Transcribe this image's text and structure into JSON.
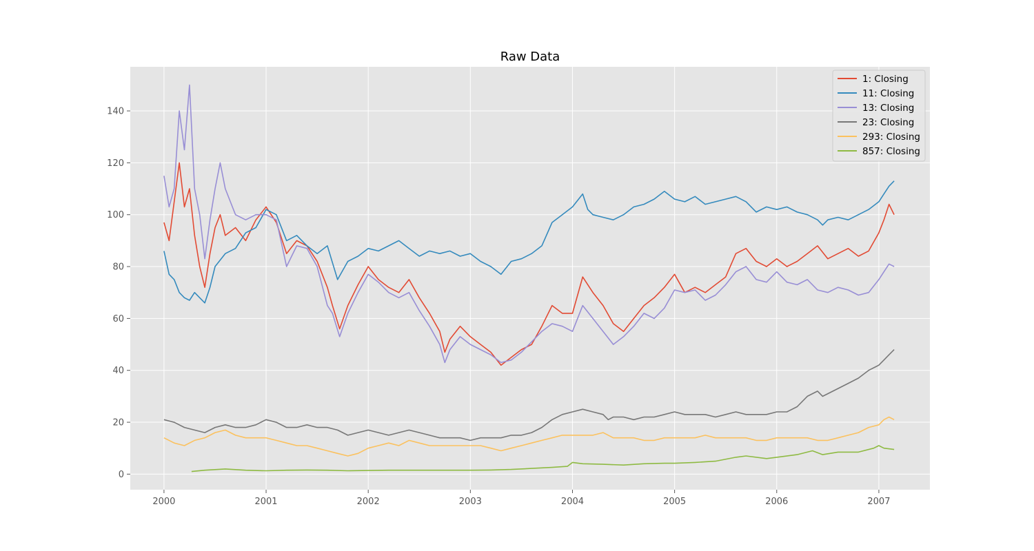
{
  "chart_data": {
    "type": "line",
    "title": "Raw Data",
    "xlabel": "",
    "ylabel": "",
    "xlim": [
      1999.67,
      2007.5
    ],
    "ylim": [
      -6,
      157
    ],
    "x_ticks": [
      2000,
      2001,
      2002,
      2003,
      2004,
      2005,
      2006,
      2007
    ],
    "x_tick_labels": [
      "2000",
      "2001",
      "2002",
      "2003",
      "2004",
      "2005",
      "2006",
      "2007"
    ],
    "y_ticks": [
      0,
      20,
      40,
      60,
      80,
      100,
      120,
      140
    ],
    "y_tick_labels": [
      "0",
      "20",
      "40",
      "60",
      "80",
      "100",
      "120",
      "140"
    ],
    "grid": true,
    "legend_position": "top-right",
    "series": [
      {
        "name": "1: Closing",
        "color": "#E24A33",
        "x": [
          2000.0,
          2000.05,
          2000.1,
          2000.15,
          2000.2,
          2000.25,
          2000.3,
          2000.35,
          2000.4,
          2000.45,
          2000.5,
          2000.55,
          2000.6,
          2000.7,
          2000.8,
          2000.9,
          2001.0,
          2001.1,
          2001.2,
          2001.3,
          2001.4,
          2001.5,
          2001.6,
          2001.65,
          2001.72,
          2001.8,
          2001.9,
          2002.0,
          2002.1,
          2002.2,
          2002.3,
          2002.4,
          2002.5,
          2002.6,
          2002.7,
          2002.75,
          2002.8,
          2002.9,
          2003.0,
          2003.1,
          2003.2,
          2003.3,
          2003.4,
          2003.5,
          2003.6,
          2003.7,
          2003.8,
          2003.9,
          2004.0,
          2004.1,
          2004.2,
          2004.3,
          2004.4,
          2004.5,
          2004.6,
          2004.7,
          2004.8,
          2004.9,
          2005.0,
          2005.1,
          2005.2,
          2005.3,
          2005.4,
          2005.5,
          2005.6,
          2005.7,
          2005.8,
          2005.9,
          2006.0,
          2006.1,
          2006.2,
          2006.3,
          2006.4,
          2006.5,
          2006.6,
          2006.7,
          2006.8,
          2006.9,
          2007.0,
          2007.05,
          2007.1,
          2007.15
        ],
        "values": [
          97,
          90,
          105,
          120,
          103,
          110,
          92,
          80,
          72,
          85,
          95,
          100,
          92,
          95,
          90,
          98,
          103,
          97,
          85,
          90,
          88,
          82,
          72,
          65,
          56,
          65,
          73,
          80,
          75,
          72,
          70,
          75,
          68,
          62,
          55,
          47,
          52,
          57,
          53,
          50,
          47,
          42,
          45,
          48,
          50,
          57,
          65,
          62,
          62,
          76,
          70,
          65,
          58,
          55,
          60,
          65,
          68,
          72,
          77,
          70,
          72,
          70,
          73,
          76,
          85,
          87,
          82,
          80,
          83,
          80,
          82,
          85,
          88,
          83,
          85,
          87,
          84,
          86,
          93,
          98,
          104,
          100
        ]
      },
      {
        "name": "11: Closing",
        "color": "#348ABD",
        "x": [
          2000.0,
          2000.05,
          2000.1,
          2000.15,
          2000.2,
          2000.25,
          2000.3,
          2000.35,
          2000.4,
          2000.45,
          2000.5,
          2000.6,
          2000.7,
          2000.8,
          2000.9,
          2001.0,
          2001.1,
          2001.2,
          2001.3,
          2001.4,
          2001.5,
          2001.6,
          2001.7,
          2001.8,
          2001.9,
          2002.0,
          2002.1,
          2002.2,
          2002.3,
          2002.4,
          2002.5,
          2002.6,
          2002.7,
          2002.8,
          2002.9,
          2003.0,
          2003.1,
          2003.2,
          2003.3,
          2003.4,
          2003.5,
          2003.6,
          2003.7,
          2003.8,
          2003.9,
          2004.0,
          2004.1,
          2004.15,
          2004.2,
          2004.3,
          2004.4,
          2004.5,
          2004.6,
          2004.7,
          2004.8,
          2004.9,
          2005.0,
          2005.1,
          2005.2,
          2005.3,
          2005.4,
          2005.5,
          2005.6,
          2005.7,
          2005.8,
          2005.9,
          2006.0,
          2006.1,
          2006.2,
          2006.3,
          2006.4,
          2006.45,
          2006.5,
          2006.6,
          2006.7,
          2006.8,
          2006.9,
          2007.0,
          2007.05,
          2007.1,
          2007.15
        ],
        "values": [
          86,
          77,
          75,
          70,
          68,
          67,
          70,
          68,
          66,
          72,
          80,
          85,
          87,
          93,
          95,
          102,
          100,
          90,
          92,
          88,
          85,
          88,
          75,
          82,
          84,
          87,
          86,
          88,
          90,
          87,
          84,
          86,
          85,
          86,
          84,
          85,
          82,
          80,
          77,
          82,
          83,
          85,
          88,
          97,
          100,
          103,
          108,
          102,
          100,
          99,
          98,
          100,
          103,
          104,
          106,
          109,
          106,
          105,
          107,
          104,
          105,
          106,
          107,
          105,
          101,
          103,
          102,
          103,
          101,
          100,
          98,
          96,
          98,
          99,
          98,
          100,
          102,
          105,
          108,
          111,
          113
        ]
      },
      {
        "name": "13: Closing",
        "color": "#988ED5",
        "x": [
          2000.0,
          2000.05,
          2000.1,
          2000.15,
          2000.2,
          2000.25,
          2000.3,
          2000.35,
          2000.4,
          2000.45,
          2000.5,
          2000.55,
          2000.6,
          2000.7,
          2000.8,
          2000.9,
          2001.0,
          2001.1,
          2001.2,
          2001.3,
          2001.4,
          2001.5,
          2001.6,
          2001.65,
          2001.72,
          2001.8,
          2001.9,
          2002.0,
          2002.1,
          2002.2,
          2002.3,
          2002.4,
          2002.5,
          2002.6,
          2002.7,
          2002.75,
          2002.8,
          2002.9,
          2003.0,
          2003.1,
          2003.2,
          2003.3,
          2003.4,
          2003.5,
          2003.6,
          2003.7,
          2003.8,
          2003.9,
          2004.0,
          2004.1,
          2004.2,
          2004.3,
          2004.4,
          2004.5,
          2004.6,
          2004.7,
          2004.8,
          2004.9,
          2005.0,
          2005.1,
          2005.2,
          2005.3,
          2005.4,
          2005.5,
          2005.6,
          2005.7,
          2005.8,
          2005.9,
          2006.0,
          2006.1,
          2006.2,
          2006.3,
          2006.4,
          2006.5,
          2006.6,
          2006.7,
          2006.8,
          2006.9,
          2007.0,
          2007.05,
          2007.1,
          2007.15
        ],
        "values": [
          115,
          103,
          110,
          140,
          125,
          150,
          110,
          100,
          83,
          98,
          110,
          120,
          110,
          100,
          98,
          100,
          100,
          98,
          80,
          88,
          87,
          80,
          65,
          62,
          53,
          62,
          70,
          77,
          74,
          70,
          68,
          70,
          63,
          57,
          50,
          43,
          48,
          53,
          50,
          48,
          46,
          43,
          44,
          47,
          51,
          55,
          58,
          57,
          55,
          65,
          60,
          55,
          50,
          53,
          57,
          62,
          60,
          64,
          71,
          70,
          71,
          67,
          69,
          73,
          78,
          80,
          75,
          74,
          78,
          74,
          73,
          75,
          71,
          70,
          72,
          71,
          69,
          70,
          75,
          78,
          81,
          80
        ]
      },
      {
        "name": "23: Closing",
        "color": "#777777",
        "x": [
          2000.0,
          2000.1,
          2000.2,
          2000.3,
          2000.4,
          2000.5,
          2000.6,
          2000.7,
          2000.8,
          2000.9,
          2001.0,
          2001.1,
          2001.2,
          2001.3,
          2001.4,
          2001.5,
          2001.6,
          2001.7,
          2001.8,
          2001.9,
          2002.0,
          2002.1,
          2002.2,
          2002.3,
          2002.4,
          2002.5,
          2002.6,
          2002.7,
          2002.8,
          2002.9,
          2003.0,
          2003.1,
          2003.2,
          2003.3,
          2003.4,
          2003.5,
          2003.6,
          2003.7,
          2003.8,
          2003.9,
          2004.0,
          2004.1,
          2004.2,
          2004.3,
          2004.35,
          2004.4,
          2004.5,
          2004.6,
          2004.7,
          2004.8,
          2004.9,
          2005.0,
          2005.1,
          2005.2,
          2005.3,
          2005.4,
          2005.5,
          2005.6,
          2005.7,
          2005.8,
          2005.9,
          2006.0,
          2006.1,
          2006.2,
          2006.25,
          2006.3,
          2006.4,
          2006.45,
          2006.5,
          2006.6,
          2006.7,
          2006.8,
          2006.9,
          2007.0,
          2007.05,
          2007.1,
          2007.15
        ],
        "values": [
          21,
          20,
          18,
          17,
          16,
          18,
          19,
          18,
          18,
          19,
          21,
          20,
          18,
          18,
          19,
          18,
          18,
          17,
          15,
          16,
          17,
          16,
          15,
          16,
          17,
          16,
          15,
          14,
          14,
          14,
          13,
          14,
          14,
          14,
          15,
          15,
          16,
          18,
          21,
          23,
          24,
          25,
          24,
          23,
          21,
          22,
          22,
          21,
          22,
          22,
          23,
          24,
          23,
          23,
          23,
          22,
          23,
          24,
          23,
          23,
          23,
          24,
          24,
          26,
          28,
          30,
          32,
          30,
          31,
          33,
          35,
          37,
          40,
          42,
          44,
          46,
          48
        ]
      },
      {
        "name": "293: Closing",
        "color": "#FBC15E",
        "x": [
          2000.0,
          2000.1,
          2000.2,
          2000.3,
          2000.4,
          2000.5,
          2000.6,
          2000.7,
          2000.8,
          2000.9,
          2001.0,
          2001.1,
          2001.2,
          2001.3,
          2001.4,
          2001.5,
          2001.6,
          2001.7,
          2001.8,
          2001.9,
          2002.0,
          2002.1,
          2002.2,
          2002.3,
          2002.4,
          2002.5,
          2002.6,
          2002.7,
          2002.8,
          2002.9,
          2003.0,
          2003.1,
          2003.2,
          2003.3,
          2003.4,
          2003.5,
          2003.6,
          2003.7,
          2003.8,
          2003.9,
          2004.0,
          2004.1,
          2004.2,
          2004.3,
          2004.4,
          2004.5,
          2004.6,
          2004.7,
          2004.8,
          2004.9,
          2005.0,
          2005.1,
          2005.2,
          2005.3,
          2005.4,
          2005.5,
          2005.6,
          2005.7,
          2005.8,
          2005.9,
          2006.0,
          2006.1,
          2006.2,
          2006.3,
          2006.4,
          2006.5,
          2006.6,
          2006.7,
          2006.8,
          2006.9,
          2007.0,
          2007.05,
          2007.1,
          2007.15
        ],
        "values": [
          14,
          12,
          11,
          13,
          14,
          16,
          17,
          15,
          14,
          14,
          14,
          13,
          12,
          11,
          11,
          10,
          9,
          8,
          7,
          8,
          10,
          11,
          12,
          11,
          13,
          12,
          11,
          11,
          11,
          11,
          11,
          11,
          10,
          9,
          10,
          11,
          12,
          13,
          14,
          15,
          15,
          15,
          15,
          16,
          14,
          14,
          14,
          13,
          13,
          14,
          14,
          14,
          14,
          15,
          14,
          14,
          14,
          14,
          13,
          13,
          14,
          14,
          14,
          14,
          13,
          13,
          14,
          15,
          16,
          18,
          19,
          21,
          22,
          21
        ]
      },
      {
        "name": "857: Closing",
        "color": "#8EBA42",
        "x": [
          2000.27,
          2000.4,
          2000.6,
          2000.8,
          2001.0,
          2001.2,
          2001.4,
          2001.6,
          2001.8,
          2002.0,
          2002.2,
          2002.4,
          2002.6,
          2002.8,
          2003.0,
          2003.2,
          2003.4,
          2003.6,
          2003.8,
          2003.95,
          2004.0,
          2004.1,
          2004.3,
          2004.5,
          2004.7,
          2004.9,
          2005.0,
          2005.2,
          2005.4,
          2005.6,
          2005.7,
          2005.9,
          2006.0,
          2006.2,
          2006.35,
          2006.45,
          2006.6,
          2006.8,
          2006.95,
          2007.0,
          2007.05,
          2007.15
        ],
        "values": [
          1,
          1.5,
          2,
          1.5,
          1.3,
          1.5,
          1.6,
          1.5,
          1.3,
          1.4,
          1.5,
          1.5,
          1.5,
          1.5,
          1.5,
          1.6,
          1.8,
          2.2,
          2.6,
          3,
          4.5,
          4,
          3.8,
          3.5,
          4,
          4.2,
          4.2,
          4.5,
          5,
          6.5,
          7,
          6,
          6.5,
          7.5,
          9,
          7.5,
          8.5,
          8.5,
          10,
          11,
          10,
          9.5
        ]
      }
    ]
  }
}
